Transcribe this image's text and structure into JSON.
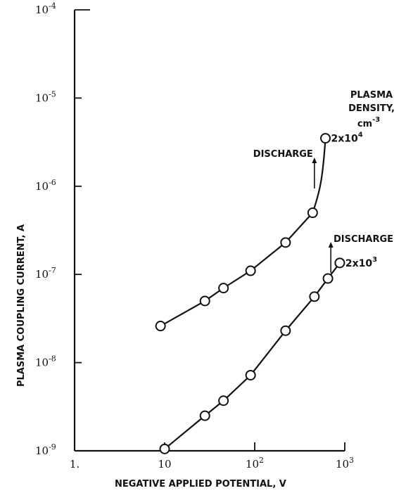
{
  "chart_data": {
    "type": "scatter",
    "title": "",
    "xlabel": "NEGATIVE APPLIED POTENTIAL, V",
    "ylabel": "PLASMA COUPLING CURRENT, A",
    "xscale": "log",
    "yscale": "log",
    "xlim": [
      1,
      1000
    ],
    "ylim": [
      1e-09,
      0.0001
    ],
    "x_ticks": [
      {
        "value": 1,
        "base": "1",
        "exp": "",
        "dot": "."
      },
      {
        "value": 10,
        "base": "10",
        "exp": "",
        "dot": ""
      },
      {
        "value": 100,
        "base": "10",
        "exp": "2",
        "dot": ""
      },
      {
        "value": 1000,
        "base": "10",
        "exp": "3",
        "dot": ""
      }
    ],
    "y_ticks": [
      {
        "value": 1e-09,
        "base": "10",
        "exp": "-9"
      },
      {
        "value": 1e-08,
        "base": "10",
        "exp": "-8"
      },
      {
        "value": 1e-07,
        "base": "10",
        "exp": "-7"
      },
      {
        "value": 1e-06,
        "base": "10",
        "exp": "-6"
      },
      {
        "value": 1e-05,
        "base": "10",
        "exp": "-5"
      },
      {
        "value": 0.0001,
        "base": "10",
        "exp": "-4"
      }
    ],
    "series": [
      {
        "label_base": "2x10",
        "label_exp": "4",
        "points": [
          {
            "x": 9,
            "y": 2.6e-08
          },
          {
            "x": 28,
            "y": 5e-08
          },
          {
            "x": 45,
            "y": 7e-08
          },
          {
            "x": 90,
            "y": 1.1e-07
          },
          {
            "x": 220,
            "y": 2.3e-07
          },
          {
            "x": 440,
            "y": 5e-07
          },
          {
            "x": 610,
            "y": 3.5e-06
          }
        ]
      },
      {
        "label_base": "2x10",
        "label_exp": "3",
        "points": [
          {
            "x": 10,
            "y": 1.05e-09
          },
          {
            "x": 28,
            "y": 2.5e-09
          },
          {
            "x": 45,
            "y": 3.7e-09
          },
          {
            "x": 90,
            "y": 7.2e-09
          },
          {
            "x": 220,
            "y": 2.3e-08
          },
          {
            "x": 460,
            "y": 5.6e-08
          },
          {
            "x": 650,
            "y": 9e-08
          },
          {
            "x": 880,
            "y": 1.35e-07
          }
        ]
      }
    ],
    "legend_title": [
      "PLASMA",
      "DENSITY,",
      "cm"
    ],
    "legend_title_exp": "-3",
    "annotations": [
      {
        "text": "DISCHARGE",
        "arrow_x": 460
      },
      {
        "text": "DISCHARGE",
        "arrow_x": 700
      }
    ]
  }
}
